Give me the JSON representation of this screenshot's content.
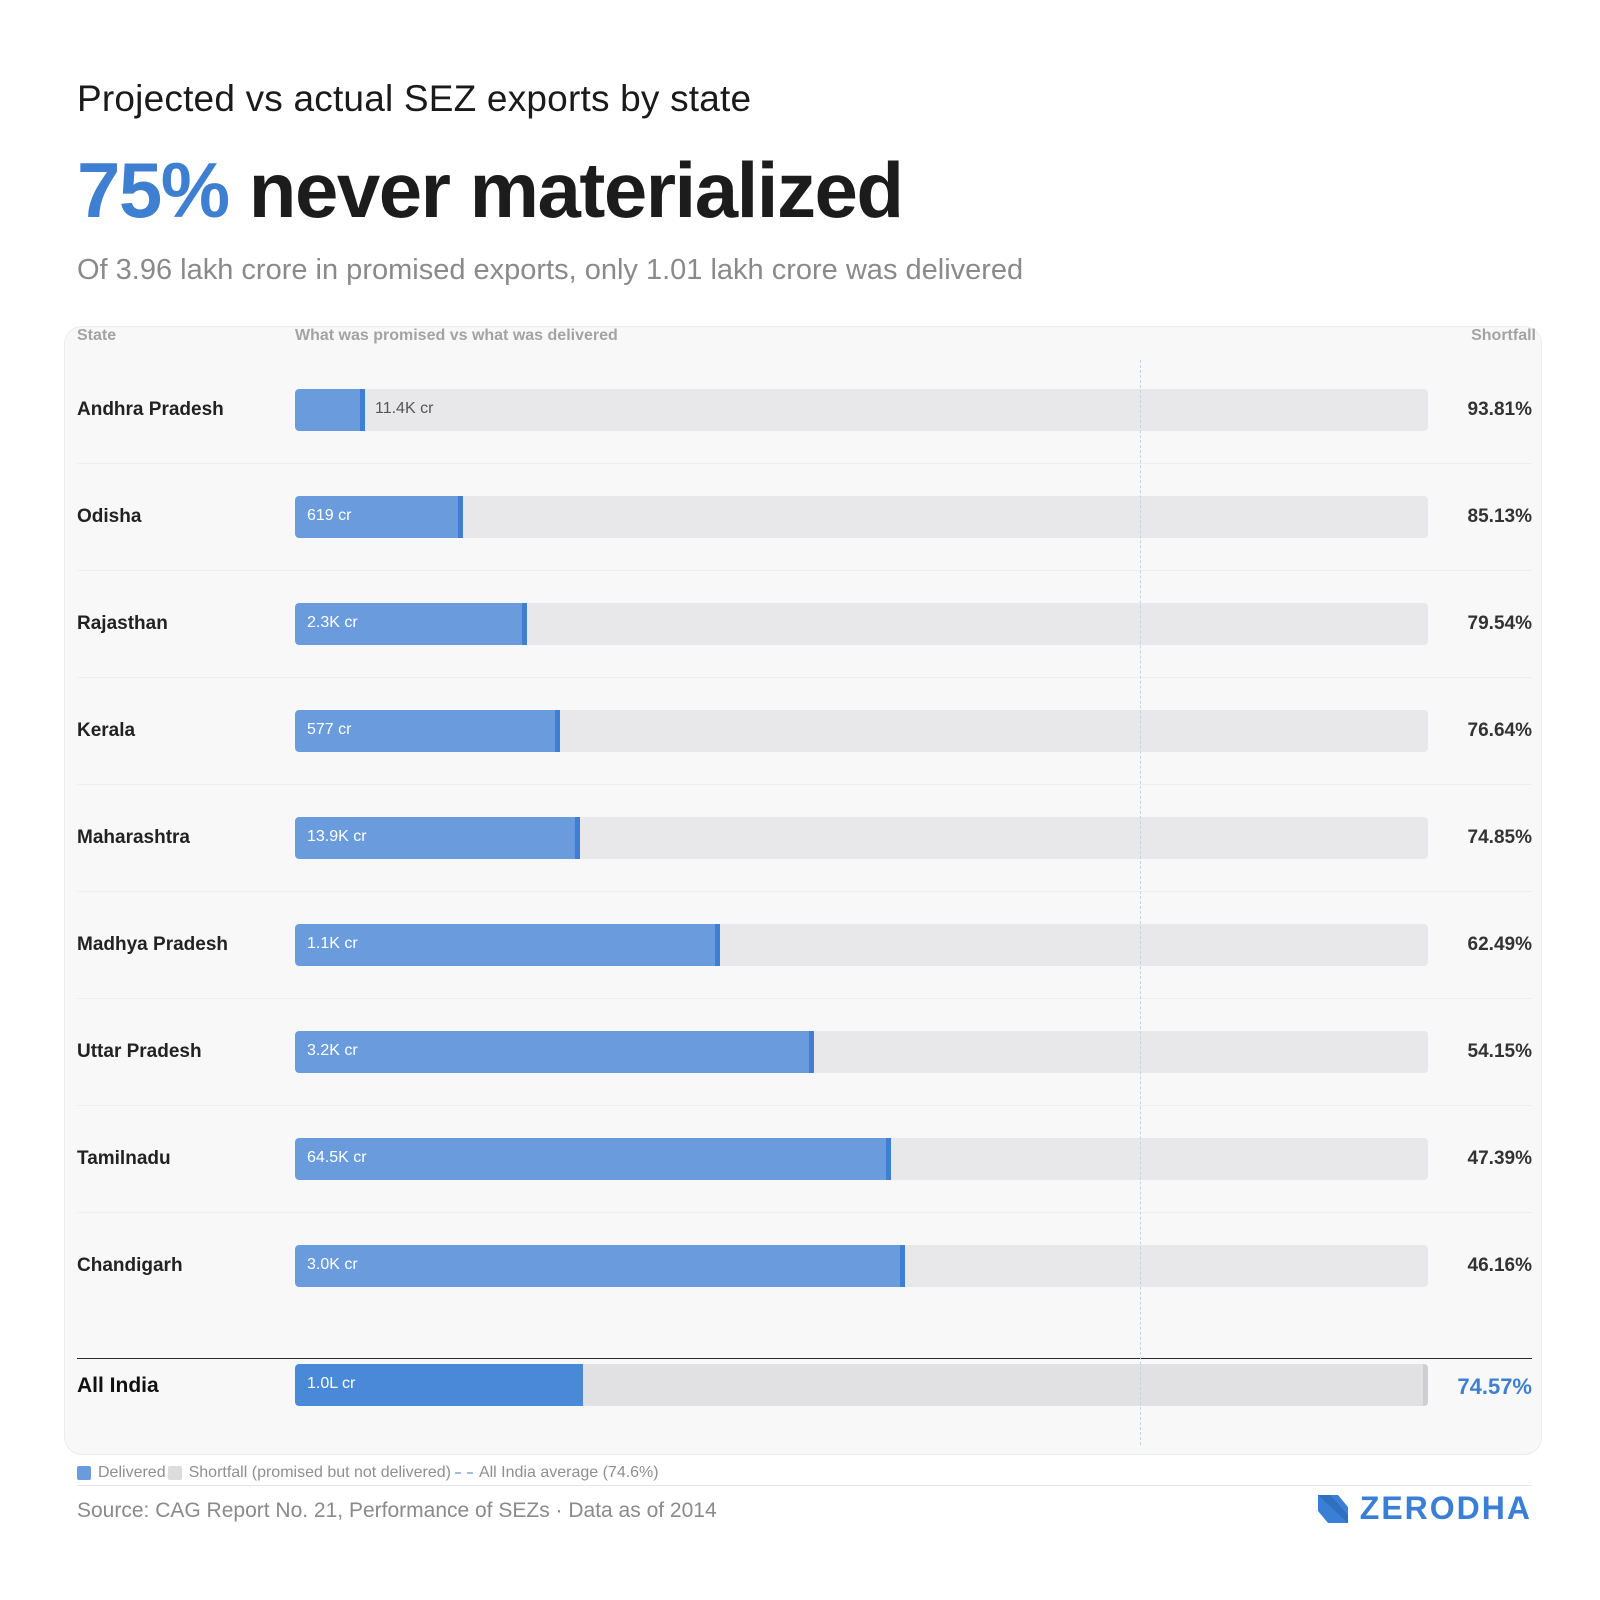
{
  "header": {
    "supertitle": "Projected vs actual SEZ exports by state",
    "headline_accent": "75%",
    "headline_rest": "never materialized",
    "subtitle": "Of 3.96 lakh crore in promised exports, only 1.01 lakh crore was delivered"
  },
  "columns": {
    "state": "State",
    "bar": "What was promised vs what was delivered",
    "shortfall": "Shortfall"
  },
  "colors": {
    "delivered": "#6a9bdc",
    "delivered_edge": "#3e7fd4",
    "shortfall": "#e8e8ea",
    "accent": "#3f7fd1"
  },
  "chart_data": {
    "type": "bar",
    "orientation": "horizontal-stacked-percent",
    "categories": [
      "Andhra Pradesh",
      "Odisha",
      "Rajasthan",
      "Kerala",
      "Maharashtra",
      "Madhya Pradesh",
      "Uttar Pradesh",
      "Tamilnadu",
      "Chandigarh"
    ],
    "delivered_labels": [
      "11.4K cr",
      "619 cr",
      "2.3K cr",
      "577 cr",
      "13.9K cr",
      "1.1K cr",
      "3.2K cr",
      "64.5K cr",
      "3.0K cr"
    ],
    "shortfall_labels": [
      "93.81%",
      "85.13%",
      "79.54%",
      "76.64%",
      "74.85%",
      "62.49%",
      "54.15%",
      "47.39%",
      "46.16%"
    ],
    "series": [
      {
        "name": "Delivered",
        "values": [
          6.19,
          14.87,
          20.46,
          23.36,
          25.15,
          37.51,
          45.85,
          52.61,
          53.84
        ]
      },
      {
        "name": "Shortfall (promised but not delivered)",
        "values": [
          93.81,
          85.13,
          79.54,
          76.64,
          74.85,
          62.49,
          54.15,
          47.39,
          46.16
        ]
      }
    ],
    "total": {
      "label": "All India",
      "delivered_label": "1.0L cr",
      "shortfall_label": "74.57%",
      "delivered_pct": 25.43
    },
    "reference_line": {
      "name": "All India average (74.6%)",
      "value": 74.6
    },
    "xlim": [
      0,
      100
    ]
  },
  "legend": {
    "delivered": "Delivered",
    "shortfall": "Shortfall (promised but not delivered)",
    "average": "All India average (74.6%)"
  },
  "footer": {
    "source": "Source: CAG Report No. 21, Performance of SEZs · Data as of 2014",
    "brand": "ZERODHA"
  }
}
